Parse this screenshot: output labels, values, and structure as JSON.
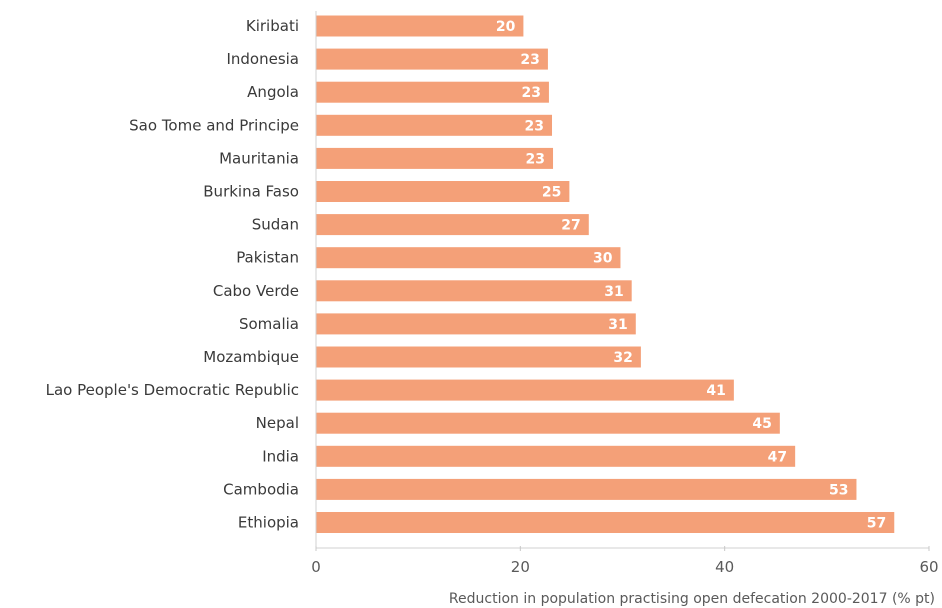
{
  "chart_data": {
    "type": "bar",
    "orientation": "horizontal",
    "categories": [
      "Kiribati",
      "Indonesia",
      "Angola",
      "Sao Tome and Principe",
      "Mauritania",
      "Burkina Faso",
      "Sudan",
      "Pakistan",
      "Cabo Verde",
      "Somalia",
      "Mozambique",
      "Lao People's Democratic Republic",
      "Nepal",
      "India",
      "Cambodia",
      "Ethiopia"
    ],
    "values": [
      20.3,
      22.7,
      22.8,
      23.1,
      23.2,
      24.8,
      26.7,
      29.8,
      30.9,
      31.3,
      31.8,
      40.9,
      45.4,
      46.9,
      52.9,
      56.6
    ],
    "value_labels": [
      "20",
      "23",
      "23",
      "23",
      "23",
      "25",
      "27",
      "30",
      "31",
      "31",
      "32",
      "41",
      "45",
      "47",
      "53",
      "57"
    ],
    "xlabel": "Reduction in population practising open defecation 2000-2017 (% pt)",
    "ylabel": "",
    "title": "",
    "xlim": [
      0,
      60
    ],
    "xticks": [
      0,
      20,
      40,
      60
    ],
    "xtick_labels": [
      "0",
      "20",
      "40",
      "60"
    ],
    "grid": false,
    "bar_color": "#f4a078",
    "data_labels": true
  }
}
